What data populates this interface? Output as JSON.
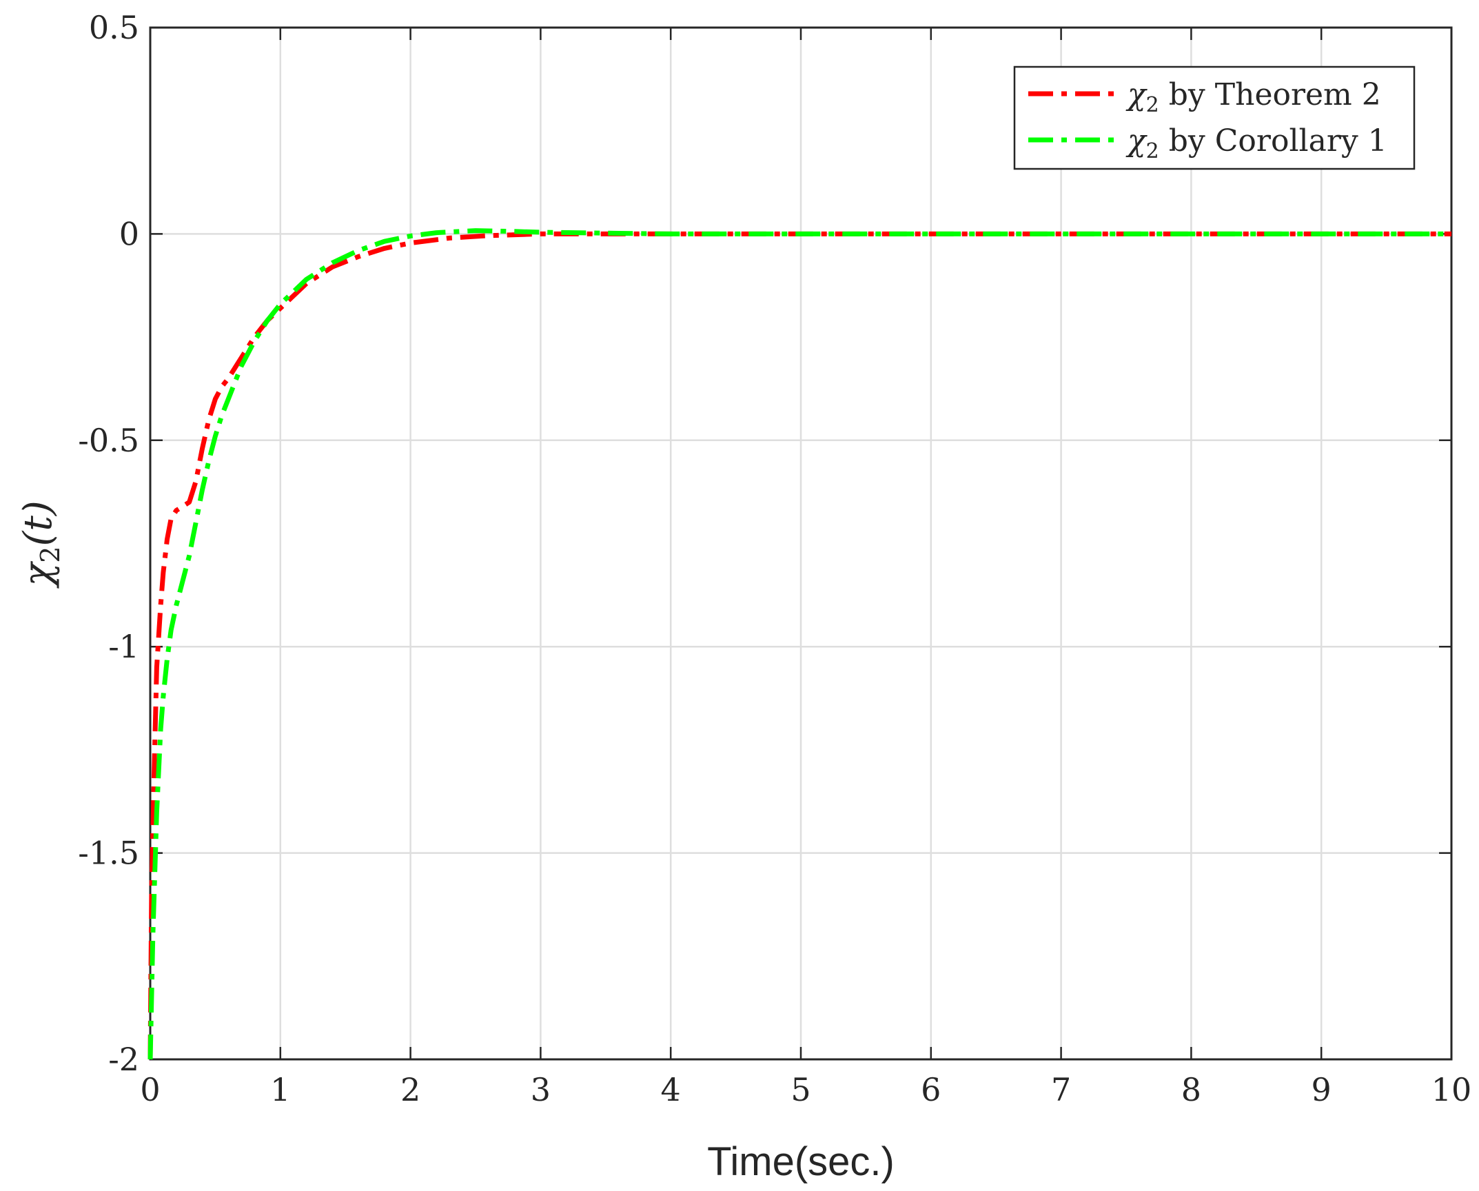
{
  "chart_data": {
    "type": "line",
    "title": "",
    "xlabel": "Time(sec.)",
    "ylabel": {
      "main": "χ",
      "sub": "2",
      "arg": "(t)"
    },
    "xlim": [
      0,
      10
    ],
    "ylim": [
      -2,
      0.5
    ],
    "grid": true,
    "legend_position": "top-right",
    "xticks": [
      0,
      1,
      2,
      3,
      4,
      5,
      6,
      7,
      8,
      9,
      10
    ],
    "xtick_labels": [
      "0",
      "1",
      "2",
      "3",
      "4",
      "5",
      "6",
      "7",
      "8",
      "9",
      "10"
    ],
    "yticks": [
      -2,
      -1.5,
      -1,
      -0.5,
      0,
      0.5
    ],
    "ytick_labels": [
      "-2",
      "-1.5",
      "-1",
      "-0.5",
      "0",
      "0.5"
    ],
    "series": [
      {
        "name": "χ2 by Theorem 2",
        "legend": {
          "symbol": "χ",
          "sub": "2",
          "text": " by Theorem 2"
        },
        "color": "#ff0000",
        "dash": "dashdot",
        "x": [
          0,
          0.01,
          0.03,
          0.05,
          0.08,
          0.1,
          0.13,
          0.16,
          0.2,
          0.25,
          0.3,
          0.35,
          0.4,
          0.45,
          0.5,
          0.55,
          0.6,
          0.7,
          0.8,
          0.9,
          1.0,
          1.2,
          1.4,
          1.6,
          1.8,
          2.0,
          2.3,
          2.6,
          3.0,
          3.5,
          4,
          5,
          6,
          7,
          8,
          9,
          10
        ],
        "y": [
          -2,
          -1.6,
          -1.3,
          -1.05,
          -0.9,
          -0.82,
          -0.74,
          -0.69,
          -0.67,
          -0.66,
          -0.65,
          -0.6,
          -0.52,
          -0.45,
          -0.4,
          -0.37,
          -0.35,
          -0.3,
          -0.25,
          -0.21,
          -0.18,
          -0.12,
          -0.08,
          -0.055,
          -0.035,
          -0.022,
          -0.01,
          -0.004,
          0,
          0,
          0,
          0,
          0,
          0,
          0,
          0,
          0
        ]
      },
      {
        "name": "χ2 by Corollary 1",
        "legend": {
          "symbol": "χ",
          "sub": "2",
          "text": " by Corollary 1"
        },
        "color": "#00ff00",
        "dash": "dashdot",
        "x": [
          0,
          0.02,
          0.05,
          0.08,
          0.1,
          0.13,
          0.16,
          0.2,
          0.25,
          0.3,
          0.35,
          0.4,
          0.45,
          0.5,
          0.55,
          0.6,
          0.7,
          0.8,
          0.9,
          1.0,
          1.2,
          1.4,
          1.6,
          1.8,
          2.0,
          2.2,
          2.5,
          2.8,
          3.0,
          3.5,
          4,
          5,
          6,
          7,
          8,
          9,
          10
        ],
        "y": [
          -2,
          -1.7,
          -1.4,
          -1.2,
          -1.12,
          -1.03,
          -0.96,
          -0.9,
          -0.84,
          -0.78,
          -0.7,
          -0.62,
          -0.55,
          -0.49,
          -0.44,
          -0.4,
          -0.32,
          -0.26,
          -0.21,
          -0.17,
          -0.11,
          -0.07,
          -0.04,
          -0.018,
          -0.005,
          0.003,
          0.008,
          0.006,
          0.004,
          0.002,
          0,
          0,
          0,
          0,
          0,
          0,
          0
        ]
      }
    ]
  }
}
